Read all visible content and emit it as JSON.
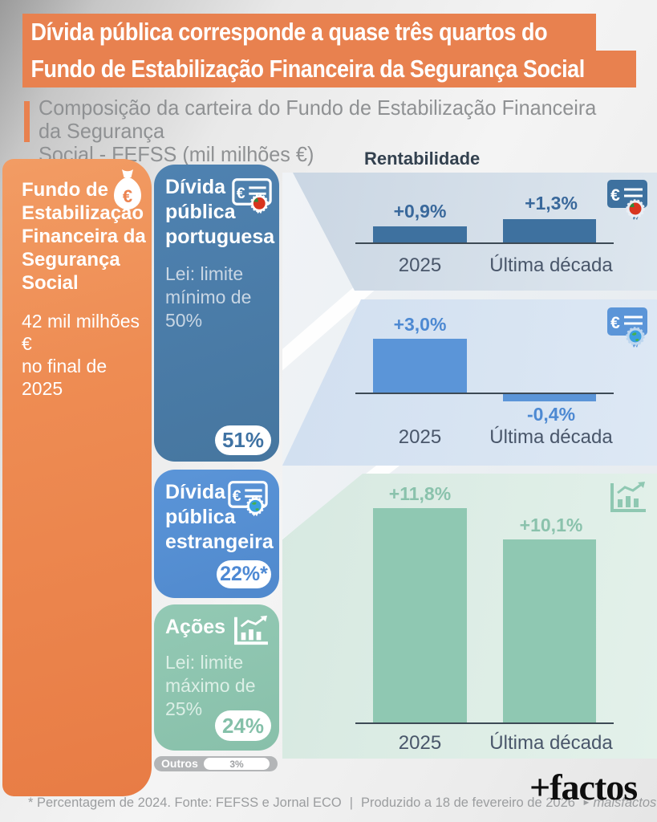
{
  "colors": {
    "orange": "#e8814f",
    "steel_blue": "#3e719f",
    "bright_blue": "#5b95d8",
    "green": "#8fc8b2",
    "gray_bar": "#b3b5b7"
  },
  "header": {
    "title_line1": "Dívida pública corresponde a quase três quartos do",
    "title_line2": "Fundo de Estabilização Financeira da Segurança Social",
    "subtitle": "Composição da carteira do Fundo de Estabilização Financeira da Segurança\nSocial - FEFSS (mil milhões €)"
  },
  "sidebar": {
    "title": "Fundo de\nEstabilização\nFinanceira da\nSegurança\nSocial",
    "amount": "42 mil milhões €\nno final de 2025",
    "icon": "money-bag-euro-icon"
  },
  "composition": {
    "items": [
      {
        "label": "Dívida\npública\nportuguesa",
        "law": "Lei: limite\nmínimo de 50%",
        "value": "51%",
        "icon": "certificate-portugal-icon"
      },
      {
        "label": "Dívida\npública\nestrangeira",
        "law": "",
        "value": "22%*",
        "icon": "certificate-globe-icon"
      },
      {
        "label": "Ações",
        "law": "Lei: limite\nmáximo de 25%",
        "value": "24%",
        "icon": "stocks-chart-icon"
      },
      {
        "label": "Outros",
        "law": "",
        "value": "3%",
        "icon": ""
      }
    ]
  },
  "returns": {
    "heading": "Rentabilidade"
  },
  "chart_data": [
    {
      "type": "bar",
      "series_icon": "certificate-portugal-icon",
      "series": "Dívida pública portuguesa",
      "categories": [
        "2025",
        "Última década"
      ],
      "values": [
        0.9,
        1.3
      ],
      "value_labels": [
        "+0,9%",
        "+1,3%"
      ],
      "unit": "%",
      "color": "#3e719f",
      "baseline": 0,
      "legend_position": "none",
      "grid": false
    },
    {
      "type": "bar",
      "series_icon": "certificate-globe-icon",
      "series": "Dívida pública estrangeira",
      "categories": [
        "2025",
        "Última década"
      ],
      "values": [
        3.0,
        -0.4
      ],
      "value_labels": [
        "+3,0%",
        "-0,4%"
      ],
      "unit": "%",
      "color": "#5b95d8",
      "baseline": 0,
      "legend_position": "none",
      "grid": false
    },
    {
      "type": "bar",
      "series_icon": "stocks-chart-icon",
      "series": "Ações",
      "categories": [
        "2025",
        "Última década"
      ],
      "values": [
        11.8,
        10.1
      ],
      "value_labels": [
        "+11,8%",
        "+10,1%"
      ],
      "unit": "%",
      "color": "#8fc8b2",
      "baseline": 0,
      "legend_position": "none",
      "grid": false
    }
  ],
  "footer": {
    "note": "* Percentagem de 2024. Fonte: FEFSS e Jornal ECO",
    "separator": "|",
    "produced": "Produzido a 18 de fevereiro de 2026",
    "site": "maisfactos.pt",
    "logo": "+factos"
  }
}
